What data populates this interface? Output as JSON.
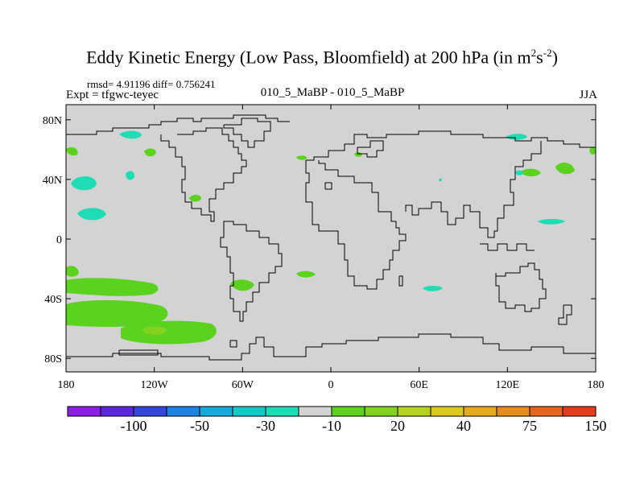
{
  "title": {
    "prefix": "Eddy Kinetic Energy (Low Pass, Bloomfield) at 200 hPa (in m",
    "sup1": "2",
    "mid": "s",
    "sup2": "-2",
    "suffix": ")"
  },
  "stats": "rmsd= 4.91196 diff= 0.756241",
  "expt": "Expt = tfgwc-teyec",
  "center_label": "010_5_MaBP - 010_5_MaBP",
  "season": "JJA",
  "map": {
    "lat_ticks": [
      {
        "value": 80,
        "label": "80N"
      },
      {
        "value": 40,
        "label": "40N"
      },
      {
        "value": 0,
        "label": "0"
      },
      {
        "value": -40,
        "label": "40S"
      },
      {
        "value": -80,
        "label": "80S"
      }
    ],
    "lon_ticks": [
      {
        "value": -180,
        "label": "180"
      },
      {
        "value": -120,
        "label": "120W"
      },
      {
        "value": -60,
        "label": "60W"
      },
      {
        "value": 0,
        "label": "0"
      },
      {
        "value": 60,
        "label": "60E"
      },
      {
        "value": 120,
        "label": "120E"
      },
      {
        "value": 180,
        "label": "180"
      }
    ],
    "background_color": "#d3d3d3",
    "coast_color": "#000000"
  },
  "colorbar": {
    "colors": [
      "#8c1ee6",
      "#5a28dc",
      "#3246dc",
      "#1e82e6",
      "#14aadc",
      "#14c8c8",
      "#1edcb4",
      "#d3d3d3",
      "#5ad21e",
      "#82d21e",
      "#b4d21e",
      "#dcc81e",
      "#e6aa1e",
      "#e68c1e",
      "#e6641e",
      "#e63c1e"
    ],
    "labels": [
      {
        "index": 2,
        "text": "-100"
      },
      {
        "index": 4,
        "text": "-50"
      },
      {
        "index": 6,
        "text": "-30"
      },
      {
        "index": 8,
        "text": "-10"
      },
      {
        "index": 10,
        "text": "20"
      },
      {
        "index": 12,
        "text": "40"
      },
      {
        "index": 14,
        "text": "75"
      },
      {
        "index": 16,
        "text": "150"
      }
    ]
  }
}
